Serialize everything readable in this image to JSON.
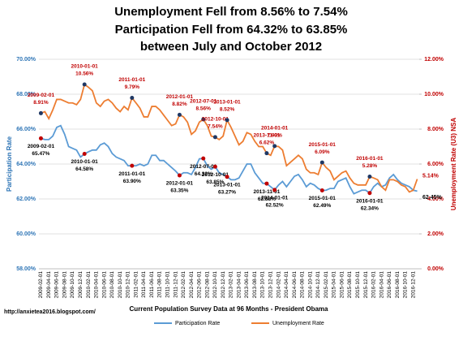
{
  "chart_data": {
    "type": "line",
    "title": [
      "Unemployment Fell from 8.56% to 7.54%",
      "Participation Fell from 64.32% to 63.85%",
      "between July and October 2012"
    ],
    "x_label": "Current Population Survey Data at 96 Months - President Obama",
    "y_label": "Participation Rate",
    "y2_label": "Unemployment Rate (U3) NSA",
    "source": "http://anxietea2016.blogspot.com/",
    "grid": true,
    "categories": [
      "2009-02-01",
      null,
      "2009-04-01",
      null,
      "2009-06-01",
      null,
      "2009-08-01",
      null,
      "2009-10-01",
      null,
      "2009-12-01",
      null,
      "2010-02-01",
      null,
      "2010-04-01",
      null,
      "2010-06-01",
      null,
      "2010-08-01",
      null,
      "2010-10-01",
      null,
      "2010-12-01",
      null,
      "2011-02-01",
      null,
      "2011-04-01",
      null,
      "2011-06-01",
      null,
      "2011-08-01",
      null,
      "2011-10-01",
      null,
      "2011-12-01",
      null,
      "2012-02-01",
      null,
      "2012-04-01",
      null,
      "2012-06-01",
      null,
      "2012-08-01",
      null,
      "2012-10-01",
      null,
      "2012-12-01",
      null,
      "2013-02-01",
      null,
      "2013-04-01",
      null,
      "2013-06-01",
      null,
      "2013-08-01",
      null,
      "2013-10-01",
      null,
      "2013-12-01",
      null,
      "2014-02-01",
      null,
      "2014-04-01",
      null,
      "2014-06-01",
      null,
      "2014-08-01",
      null,
      "2014-10-01",
      null,
      "2014-12-01",
      null,
      "2015-02-01",
      null,
      "2015-04-01",
      null,
      "2015-06-01",
      null,
      "2015-08-01",
      null,
      "2015-10-01",
      null,
      "2015-12-01",
      null,
      "2016-02-01",
      null,
      "2016-04-01",
      null,
      "2016-06-01",
      null,
      "2016-08-01",
      null,
      "2016-10-01",
      null,
      "2016-12-01",
      null
    ],
    "ylim": [
      58,
      70
    ],
    "yticks": [
      {
        "value": 58,
        "label": "58.00%"
      },
      {
        "value": 60,
        "label": "60.00%"
      },
      {
        "value": 62,
        "label": "62.00%"
      },
      {
        "value": 64,
        "label": "64.00%"
      },
      {
        "value": 66,
        "label": "66.00%"
      },
      {
        "value": 68,
        "label": "68.00%"
      },
      {
        "value": 70,
        "label": "70.00%"
      }
    ],
    "y2lim": [
      0,
      12
    ],
    "y2ticks": [
      {
        "value": 0,
        "label": "0.00%"
      },
      {
        "value": 2,
        "label": "2.00%"
      },
      {
        "value": 4,
        "label": "4.00%"
      },
      {
        "value": 6,
        "label": "6.00%"
      },
      {
        "value": 8,
        "label": "8.00%"
      },
      {
        "value": 10,
        "label": "10.00%"
      },
      {
        "value": 12,
        "label": "12.00%"
      }
    ],
    "series": [
      {
        "name": "Participation Rate",
        "color": "#5b9bd5",
        "axis": "y",
        "last_label": "62.45%",
        "values": [
          65.47,
          65.4,
          65.4,
          65.6,
          66.1,
          66.2,
          65.7,
          65.0,
          64.9,
          64.8,
          64.4,
          64.58,
          64.7,
          64.8,
          64.8,
          65.1,
          65.2,
          65.0,
          64.6,
          64.4,
          64.3,
          64.2,
          63.9,
          63.9,
          63.9,
          64.0,
          63.9,
          64.0,
          64.5,
          64.5,
          64.2,
          64.2,
          64.0,
          63.8,
          63.6,
          63.35,
          63.5,
          63.5,
          63.4,
          63.8,
          64.3,
          64.32,
          63.9,
          63.7,
          63.85,
          63.5,
          63.4,
          63.27,
          63.1,
          63.1,
          63.2,
          63.6,
          64.0,
          64.0,
          63.5,
          63.2,
          62.9,
          62.88,
          62.7,
          62.52,
          62.8,
          63.0,
          62.7,
          63.0,
          63.3,
          63.4,
          63.1,
          62.7,
          62.9,
          62.8,
          62.6,
          62.49,
          62.5,
          62.6,
          62.6,
          63.0,
          63.1,
          63.2,
          62.7,
          62.3,
          62.4,
          62.5,
          62.5,
          62.34,
          62.7,
          62.9,
          62.7,
          62.8,
          63.2,
          63.4,
          63.1,
          62.9,
          62.8,
          62.7,
          62.5,
          62.45
        ]
      },
      {
        "name": "Unemployment Rate",
        "color": "#ed7d31",
        "axis": "y2",
        "last_label": "5.14%",
        "values": [
          8.91,
          9.0,
          8.6,
          9.1,
          9.7,
          9.7,
          9.6,
          9.5,
          9.5,
          9.4,
          9.7,
          10.56,
          10.4,
          10.2,
          9.5,
          9.3,
          9.6,
          9.7,
          9.5,
          9.2,
          9.0,
          9.3,
          9.1,
          9.79,
          9.5,
          9.2,
          8.7,
          8.7,
          9.3,
          9.3,
          9.1,
          8.8,
          8.5,
          8.2,
          8.3,
          8.82,
          8.7,
          8.4,
          7.7,
          7.9,
          8.4,
          8.56,
          8.2,
          7.6,
          7.54,
          7.4,
          7.6,
          8.52,
          8.1,
          7.6,
          7.1,
          7.3,
          7.8,
          7.7,
          7.3,
          7.0,
          7.0,
          6.62,
          6.5,
          7.03,
          7.0,
          6.8,
          5.9,
          6.1,
          6.3,
          6.5,
          6.3,
          5.7,
          5.5,
          5.5,
          5.4,
          6.09,
          5.8,
          5.6,
          5.1,
          5.3,
          5.5,
          5.6,
          5.2,
          4.9,
          4.8,
          4.8,
          4.8,
          5.28,
          5.2,
          5.1,
          4.7,
          4.5,
          5.1,
          5.1,
          5.0,
          4.8,
          4.7,
          4.4,
          4.5,
          5.14
        ]
      }
    ],
    "annotations": [
      {
        "x": "2009-02-01",
        "series": 1,
        "value": 8.91,
        "label": "8.91%"
      },
      {
        "x": "2010-01-01",
        "series": 1,
        "value": 10.56,
        "label": "10.56%"
      },
      {
        "x": "2011-01-01",
        "series": 1,
        "value": 9.79,
        "label": "9.79%"
      },
      {
        "x": "2012-01-01",
        "series": 1,
        "value": 8.82,
        "label": "8.82%"
      },
      {
        "x": "2012-07-01",
        "series": 1,
        "value": 8.56,
        "label": "8.56%"
      },
      {
        "x": "2012-10-01",
        "series": 1,
        "value": 7.54,
        "label": "7.54%"
      },
      {
        "x": "2013-01-01",
        "series": 1,
        "value": 8.52,
        "label": "8.52%"
      },
      {
        "x": "2013-11-01",
        "series": 1,
        "value": 6.62,
        "label": "6.62%"
      },
      {
        "x": "2014-01-01",
        "series": 1,
        "value": 7.03,
        "label": "7.03%"
      },
      {
        "x": "2015-01-01",
        "series": 1,
        "value": 6.09,
        "label": "6.09%"
      },
      {
        "x": "2016-01-01",
        "series": 1,
        "value": 5.28,
        "label": "5.28%"
      },
      {
        "x": "2009-02-01",
        "series": 0,
        "value": 65.47,
        "label": "65.47%"
      },
      {
        "x": "2010-01-01",
        "series": 0,
        "value": 64.58,
        "label": "64.58%"
      },
      {
        "x": "2011-01-01",
        "series": 0,
        "value": 63.9,
        "label": "63.90%"
      },
      {
        "x": "2012-01-01",
        "series": 0,
        "value": 63.35,
        "label": "63.35%"
      },
      {
        "x": "2012-07-01",
        "series": 0,
        "value": 64.32,
        "label": "64.32%"
      },
      {
        "x": "2012-10-01",
        "series": 0,
        "value": 63.85,
        "label": "63.85%"
      },
      {
        "x": "2013-01-01",
        "series": 0,
        "value": 63.27,
        "label": "63.27%"
      },
      {
        "x": "2013-11-01",
        "series": 0,
        "value": 62.88,
        "label": "62.88%"
      },
      {
        "x": "2014-01-01",
        "series": 0,
        "value": 62.52,
        "label": "62.52%"
      },
      {
        "x": "2015-01-01",
        "series": 0,
        "value": 62.49,
        "label": "62.49%"
      },
      {
        "x": "2016-01-01",
        "series": 0,
        "value": 62.34,
        "label": "62.34%"
      }
    ]
  }
}
